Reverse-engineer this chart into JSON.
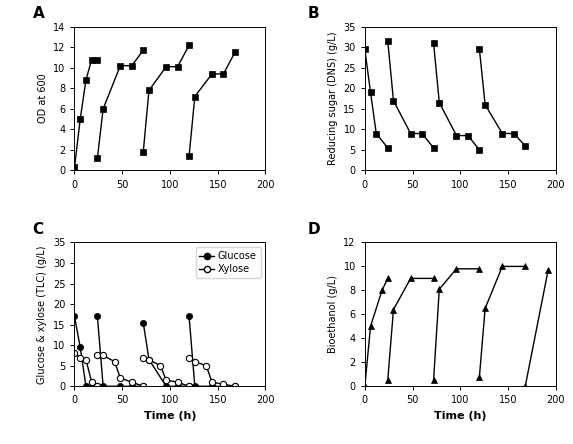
{
  "A": {
    "segments": [
      {
        "t": [
          0,
          6,
          12,
          18,
          24
        ],
        "v": [
          0.3,
          5,
          8.8,
          10.8,
          10.8
        ]
      },
      {
        "t": [
          24,
          30,
          48,
          60,
          72
        ],
        "v": [
          1.2,
          6.0,
          10.2,
          10.2,
          11.7
        ]
      },
      {
        "t": [
          72,
          78,
          96,
          108,
          120
        ],
        "v": [
          1.8,
          7.8,
          10.1,
          10.1,
          12.2
        ]
      },
      {
        "t": [
          120,
          126,
          144,
          156,
          168
        ],
        "v": [
          1.4,
          7.2,
          9.4,
          9.4,
          11.5
        ]
      }
    ],
    "ylabel": "OD at 600",
    "ylim": [
      0,
      14
    ],
    "yticks": [
      0,
      2,
      4,
      6,
      8,
      10,
      12,
      14
    ],
    "xlim": [
      0,
      200
    ],
    "xticks": [
      0,
      50,
      100,
      150,
      200
    ]
  },
  "B": {
    "segments": [
      {
        "t": [
          0,
          6,
          12,
          24
        ],
        "v": [
          29.5,
          19,
          9,
          5.5
        ]
      },
      {
        "t": [
          24,
          30,
          48,
          60,
          72
        ],
        "v": [
          31.5,
          17,
          9,
          9,
          5.5
        ]
      },
      {
        "t": [
          72,
          78,
          96,
          108,
          120
        ],
        "v": [
          31,
          16.5,
          8.5,
          8.5,
          5
        ]
      },
      {
        "t": [
          120,
          126,
          144,
          156,
          168
        ],
        "v": [
          29.5,
          16,
          9,
          9,
          6
        ]
      }
    ],
    "ylabel": "Reducing sugar (DNS) (g/L)",
    "ylim": [
      0,
      35
    ],
    "yticks": [
      0,
      5,
      10,
      15,
      20,
      25,
      30,
      35
    ],
    "xlim": [
      0,
      200
    ],
    "xticks": [
      0,
      50,
      100,
      150,
      200
    ]
  },
  "C": {
    "glucose_segments": [
      {
        "t": [
          0,
          6,
          12,
          18,
          24
        ],
        "v": [
          17,
          9.5,
          0,
          0,
          0
        ]
      },
      {
        "t": [
          24,
          30,
          48,
          60,
          72
        ],
        "v": [
          17,
          0,
          0,
          0,
          0
        ]
      },
      {
        "t": [
          72,
          78,
          96,
          108,
          120
        ],
        "v": [
          15.5,
          6.5,
          0,
          0,
          0
        ]
      },
      {
        "t": [
          120,
          126,
          144,
          156,
          168
        ],
        "v": [
          17,
          0,
          0,
          0,
          0
        ]
      }
    ],
    "xylose_segments": [
      {
        "t": [
          0,
          6,
          12,
          18,
          24
        ],
        "v": [
          8,
          7,
          6.5,
          1,
          0
        ]
      },
      {
        "t": [
          24,
          30,
          42,
          48,
          60,
          72
        ],
        "v": [
          7.5,
          7.5,
          6,
          2,
          1,
          0
        ]
      },
      {
        "t": [
          72,
          78,
          90,
          96,
          108,
          120
        ],
        "v": [
          7,
          6.5,
          5,
          1.5,
          1,
          0
        ]
      },
      {
        "t": [
          120,
          126,
          138,
          144,
          156,
          168
        ],
        "v": [
          7,
          6,
          5,
          1,
          0.5,
          0
        ]
      }
    ],
    "ylabel": "Glucose & xylose (TLC) (g/L)",
    "xlabel": "Time (h)",
    "ylim": [
      0,
      35
    ],
    "yticks": [
      0,
      5,
      10,
      15,
      20,
      25,
      30,
      35
    ],
    "xticks": [
      0,
      50,
      100,
      150,
      200
    ],
    "xlim": [
      0,
      200
    ]
  },
  "D": {
    "segments": [
      {
        "t": [
          0,
          6,
          18,
          24
        ],
        "v": [
          0,
          5,
          8,
          9
        ]
      },
      {
        "t": [
          24,
          30,
          48,
          72
        ],
        "v": [
          0.5,
          6.4,
          9,
          9
        ]
      },
      {
        "t": [
          72,
          78,
          96,
          120
        ],
        "v": [
          0.5,
          8.1,
          9.8,
          9.8
        ]
      },
      {
        "t": [
          120,
          126,
          144,
          168
        ],
        "v": [
          0.8,
          6.5,
          10,
          10
        ]
      },
      {
        "t": [
          168,
          192
        ],
        "v": [
          0,
          9.7
        ]
      }
    ],
    "ylabel": "Bioethanol (g/L)",
    "xlabel": "Time (h)",
    "ylim": [
      0,
      12
    ],
    "yticks": [
      0,
      2,
      4,
      6,
      8,
      10,
      12
    ],
    "xticks": [
      0,
      50,
      100,
      150,
      200
    ],
    "xlim": [
      0,
      200
    ]
  },
  "markersize": 4.5,
  "linewidth": 1.0,
  "color": "black"
}
